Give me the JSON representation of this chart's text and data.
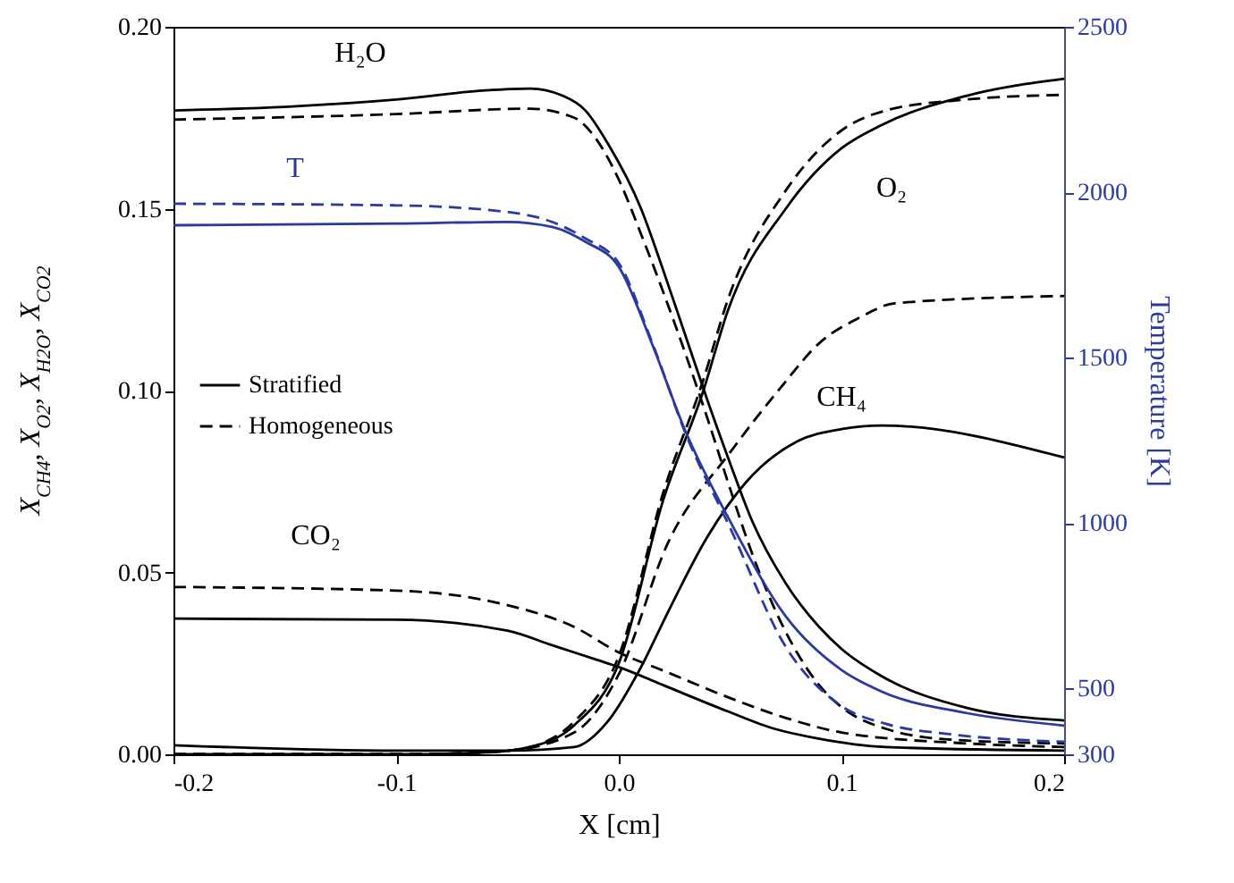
{
  "chart_data": {
    "type": "line",
    "xlabel": "X [cm]",
    "ylabel": "X$_{CH4}$, X$_{O2}$, X$_{H2O}$, X$_{CO2}$",
    "y2label": "Temperature [K]",
    "xlim": [
      -0.2,
      0.2
    ],
    "xticks": [
      -0.2,
      -0.1,
      {
        "value": 0,
        "label": "0.0"
      },
      0.1,
      0.2
    ],
    "ylim": [
      0,
      0.2
    ],
    "yticks": [
      {
        "value": 0,
        "label": "0.00"
      },
      {
        "value": 0.05,
        "label": "0.05"
      },
      {
        "value": 0.1,
        "label": "0.10"
      },
      {
        "value": 0.15,
        "label": "0.15"
      },
      {
        "value": 0.2,
        "label": "0.20"
      }
    ],
    "y2lim": [
      300,
      2500
    ],
    "y2ticks": [
      300,
      500,
      1000,
      1500,
      2000,
      2500
    ],
    "legend": "center left",
    "series": [
      {
        "name": "H₂O",
        "color": "#000000",
        "line_style": "solid",
        "x": [
          -0.2,
          -0.15,
          -0.1,
          -0.06,
          -0.04,
          -0.025,
          -0.015,
          -0.005,
          0.01,
          0.02,
          0.03,
          0.04,
          0.05,
          0.06,
          0.075,
          0.09,
          0.1,
          0.118,
          0.156,
          0.2
        ],
        "values": [
          0.177,
          0.178,
          0.18,
          0.1825,
          0.183,
          0.181,
          0.177,
          0.168,
          0.15,
          0.133,
          0.115,
          0.097,
          0.08,
          0.064,
          0.047,
          0.035,
          0.029,
          0.0215,
          0.0128,
          0.0093
        ]
      },
      {
        "color": "#000000",
        "line_style": "dashed",
        "x": [
          -0.2,
          -0.1,
          -0.04,
          -0.02,
          -0.01,
          0,
          0.01,
          0.02,
          0.03,
          0.04,
          0.05,
          0.06,
          0.07,
          0.08,
          0.09,
          0.1,
          0.12,
          0.15,
          0.2
        ],
        "values": [
          0.1745,
          0.176,
          0.1775,
          0.175,
          0.169,
          0.158,
          0.143,
          0.127,
          0.11,
          0.092,
          0.073,
          0.055,
          0.04,
          0.028,
          0.019,
          0.013,
          0.007,
          0.004,
          0.003
        ]
      },
      {
        "name": "O₂",
        "color": "#000000",
        "line_style": "solid",
        "x": [
          -0.2,
          -0.1,
          -0.06,
          -0.04,
          -0.02,
          0,
          0.02,
          0.038,
          0.049,
          0.075,
          0.1,
          0.118,
          0.156,
          0.2
        ],
        "values": [
          0,
          0,
          0.0005,
          0.002,
          0.008,
          0.025,
          0.07,
          0.1,
          0.122,
          0.15,
          0.1666,
          0.173,
          0.181,
          0.1857
        ]
      },
      {
        "color": "#000000",
        "line_style": "dashed",
        "x": [
          -0.2,
          -0.1,
          -0.06,
          -0.04,
          -0.02,
          0,
          0.02,
          0.038,
          0.049,
          0.075,
          0.1,
          0.12,
          0.156,
          0.2
        ],
        "values": [
          0,
          0,
          0.0005,
          0.002,
          0.009,
          0.027,
          0.072,
          0.103,
          0.125,
          0.155,
          0.1715,
          0.177,
          0.18,
          0.1813
        ]
      },
      {
        "name": "CH₄",
        "color": "#000000",
        "line_style": "solid",
        "x": [
          -0.2,
          -0.1,
          -0.05,
          -0.02,
          -0.005,
          0.01,
          0.022,
          0.04,
          0.057,
          0.08,
          0.1,
          0.118,
          0.2
        ],
        "values": [
          0.0025,
          0.001,
          0.001,
          0.002,
          0.009,
          0.024,
          0.039,
          0.06,
          0.0747,
          0.086,
          0.0894,
          0.0904,
          0.0816
        ]
      },
      {
        "color": "#000000",
        "line_style": "dashed",
        "x": [
          -0.2,
          -0.1,
          -0.05,
          -0.02,
          0,
          0.022,
          0.05,
          0.073,
          0.09,
          0.108,
          0.124,
          0.2
        ],
        "values": [
          0,
          0,
          0.001,
          0.006,
          0.022,
          0.058,
          0.083,
          0.101,
          0.113,
          0.12,
          0.124,
          0.126
        ]
      },
      {
        "name": "CO₂",
        "color": "#000000",
        "line_style": "solid",
        "x": [
          -0.2,
          -0.1,
          -0.05,
          -0.03,
          -0.01,
          0,
          0.02,
          0.049,
          0.07,
          0.089,
          0.12,
          0.2
        ],
        "values": [
          0.0373,
          0.037,
          0.034,
          0.03,
          0.026,
          0.024,
          0.019,
          0.0118,
          0.007,
          0.0044,
          0.002,
          0.001
        ]
      },
      {
        "color": "#000000",
        "line_style": "dashed",
        "x": [
          -0.2,
          -0.1,
          -0.05,
          -0.02,
          0,
          0.02,
          0.049,
          0.075,
          0.1,
          0.156,
          0.2
        ],
        "values": [
          0.046,
          0.045,
          0.041,
          0.035,
          0.028,
          0.023,
          0.0157,
          0.01,
          0.006,
          0.003,
          0.002
        ]
      },
      {
        "name": "T",
        "color": "#2b3a9e",
        "line_style": "solid",
        "axis": "y2",
        "x": [
          -0.2,
          -0.1,
          -0.05,
          -0.03,
          -0.015,
          0,
          0.015,
          0.03,
          0.05,
          0.075,
          0.1,
          0.118,
          0.156,
          0.2
        ],
        "values": [
          1900,
          1905,
          1910,
          1895,
          1850,
          1774,
          1540,
          1276,
          1005,
          717,
          555,
          490,
          425,
          387
        ]
      },
      {
        "color": "#2b3a9e",
        "line_style": "dashed",
        "axis": "y2",
        "x": [
          -0.2,
          -0.1,
          -0.05,
          -0.03,
          -0.015,
          0,
          0.015,
          0.03,
          0.05,
          0.075,
          0.1,
          0.12,
          0.15,
          0.2
        ],
        "values": [
          1965,
          1960,
          1940,
          1910,
          1860,
          1785,
          1545,
          1270,
          985,
          625,
          446,
          392,
          360,
          338
        ]
      }
    ],
    "annotations": [
      "Stratified",
      "Homogeneous"
    ]
  }
}
